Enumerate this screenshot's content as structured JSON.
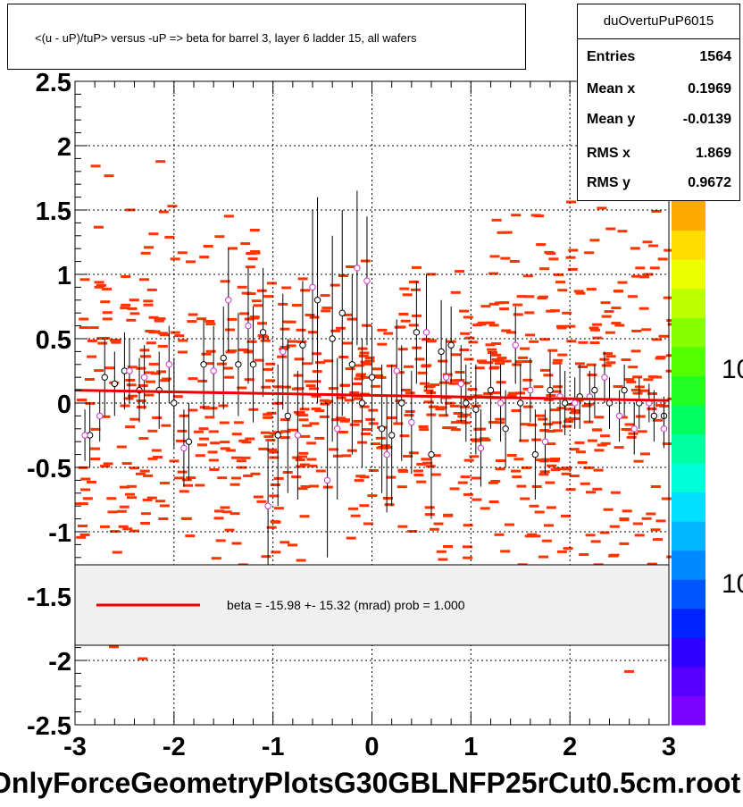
{
  "title": "<(u - uP)/tuP> versus  -uP => beta for barrel 3, layer 6 ladder 15, all wafers",
  "stats": {
    "name": "duOvertuPuP6015",
    "rows": [
      {
        "label": "Entries",
        "value": "1564"
      },
      {
        "label": "Mean x",
        "value": "0.1969"
      },
      {
        "label": "Mean y",
        "value": "-0.0139"
      },
      {
        "label": "RMS x",
        "value": "1.869"
      },
      {
        "label": "RMS y",
        "value": "0.9672"
      }
    ]
  },
  "legend": {
    "text": "beta =  -15.98 +- 15.32 (mrad) prob = 1.000",
    "line_color": "#ee0000"
  },
  "footer_text": "OnlyForceGeometryPlotsG30GBLNFP25rCut0.5cm.root",
  "colors": {
    "histogram_cells": "#ff3300",
    "fit_line": "#ee0000",
    "profile_black": "#000000",
    "profile_magenta": "#cc33cc",
    "grid": "#000000"
  },
  "chart_data": {
    "type": "scatter",
    "title": "<(u - uP)/tuP> versus  -uP => beta for barrel 3, layer 6 ladder 15, all wafers",
    "xlabel": "",
    "ylabel": "",
    "xlim": [
      -3,
      3
    ],
    "ylim": [
      -2.5,
      2.5
    ],
    "x_ticks": [
      "-3",
      "-2",
      "-1",
      "0",
      "1",
      "2",
      "3"
    ],
    "y_ticks": [
      "2.5",
      "2",
      "1.5",
      "1",
      "0.5",
      "0",
      "-0.5",
      "-1",
      "-1.5",
      "-2",
      "-2.5"
    ],
    "grid": true,
    "colorbar_labels": [
      "10",
      "10"
    ],
    "fit_line": {
      "x": [
        -3,
        3
      ],
      "y": [
        0.1,
        0.02
      ]
    },
    "series": [
      {
        "marker": "black-open-circle",
        "x": [
          -2.85,
          -2.7,
          -2.6,
          -2.5,
          -2.35,
          -2.15,
          -2.0,
          -1.85,
          -1.7,
          -1.5,
          -1.35,
          -1.2,
          -1.1,
          -0.95,
          -0.85,
          -0.7,
          -0.55,
          -0.4,
          -0.3,
          -0.2,
          -0.1,
          0.0,
          0.1,
          0.2,
          0.3,
          0.45,
          0.6,
          0.7,
          0.8,
          0.95,
          1.05,
          1.2,
          1.35,
          1.5,
          1.65,
          1.8,
          1.95,
          2.1,
          2.25,
          2.4,
          2.55,
          2.7,
          2.85,
          2.95
        ],
        "y": [
          -0.25,
          0.2,
          0.15,
          0.25,
          0.1,
          0.1,
          0.0,
          -0.3,
          0.3,
          0.35,
          0.3,
          0.3,
          0.55,
          -0.25,
          -0.1,
          0.45,
          0.8,
          0.5,
          0.7,
          0.3,
          0.0,
          0.2,
          -0.2,
          -0.25,
          0.0,
          0.55,
          -0.4,
          0.4,
          0.45,
          0.0,
          -0.05,
          0.1,
          -0.2,
          0.0,
          -0.4,
          0.1,
          0.0,
          0.05,
          0.1,
          0.0,
          0.1,
          0.0,
          -0.1,
          -0.1
        ],
        "err": [
          0.25,
          0.3,
          0.25,
          0.3,
          0.25,
          0.3,
          0.35,
          0.3,
          0.35,
          0.4,
          0.4,
          0.45,
          0.5,
          0.55,
          0.6,
          0.5,
          0.8,
          0.8,
          0.8,
          0.7,
          0.5,
          0.4,
          0.5,
          0.55,
          0.45,
          0.4,
          0.5,
          0.4,
          0.3,
          0.3,
          0.35,
          0.3,
          0.3,
          0.3,
          0.35,
          0.3,
          0.25,
          0.25,
          0.2,
          0.2,
          0.2,
          0.2,
          0.2,
          0.15
        ]
      },
      {
        "marker": "magenta-open-circle",
        "x": [
          -2.9,
          -2.75,
          -2.45,
          -2.3,
          -2.05,
          -1.9,
          -1.6,
          -1.45,
          -1.25,
          -1.05,
          -0.9,
          -0.75,
          -0.6,
          -0.45,
          -0.35,
          -0.15,
          -0.05,
          0.15,
          0.25,
          0.4,
          0.55,
          0.75,
          0.9,
          1.1,
          1.3,
          1.45,
          1.6,
          1.75,
          1.9,
          2.05,
          2.2,
          2.35,
          2.5,
          2.65,
          2.8,
          2.95
        ],
        "y": [
          -0.25,
          -0.1,
          0.25,
          0.2,
          0.3,
          -0.35,
          0.25,
          0.8,
          0.6,
          -0.8,
          0.4,
          -0.25,
          0.9,
          -0.6,
          -0.2,
          1.05,
          0.95,
          -0.4,
          0.25,
          -0.15,
          0.55,
          0.2,
          0.15,
          -0.35,
          0.0,
          0.45,
          0.1,
          -0.3,
          0.05,
          0.0,
          0.05,
          0.2,
          -0.1,
          -0.2,
          0.0,
          -0.2
        ],
        "err": [
          0.2,
          0.2,
          0.25,
          0.25,
          0.3,
          0.3,
          0.35,
          0.4,
          0.45,
          0.5,
          0.45,
          0.5,
          0.6,
          0.6,
          0.55,
          0.6,
          0.5,
          0.45,
          0.4,
          0.4,
          0.45,
          0.3,
          0.3,
          0.3,
          0.3,
          0.3,
          0.25,
          0.25,
          0.25,
          0.2,
          0.2,
          0.2,
          0.2,
          0.2,
          0.15,
          0.15
        ]
      }
    ]
  }
}
